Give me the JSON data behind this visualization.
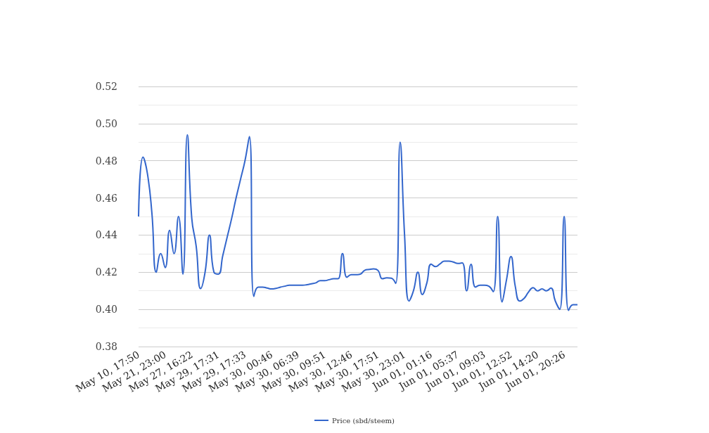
{
  "chart_data": {
    "type": "line",
    "categories": [
      "May 10, 17:50",
      null,
      null,
      null,
      null,
      null,
      "May 21, 23:00",
      null,
      null,
      null,
      null,
      null,
      "May 27, 16:22",
      null,
      null,
      null,
      null,
      null,
      "May 29, 17:31",
      null,
      null,
      null,
      null,
      null,
      "May 29, 17:33",
      null,
      null,
      null,
      null,
      null,
      "May 30, 00:46",
      null,
      null,
      null,
      null,
      null,
      "May 30, 06:39",
      null,
      null,
      null,
      null,
      null,
      "May 30, 09:51",
      null,
      null,
      null,
      null,
      null,
      "May 30, 12:46",
      null,
      null,
      null,
      null,
      null,
      "May 30, 17:51",
      null,
      null,
      null,
      null,
      null,
      "May 30, 23:01",
      null,
      null,
      null,
      null,
      null,
      "Jun 01, 01:16",
      null,
      null,
      null,
      null,
      null,
      "Jun 01, 05:37",
      null,
      null,
      null,
      null,
      null,
      "Jun 01, 09:03",
      null,
      null,
      null,
      null,
      null,
      "Jun 01, 12:52",
      null,
      null,
      null,
      null,
      null,
      "Jun 01, 14:20",
      null,
      null,
      null,
      null,
      null,
      "Jun 01, 20:26",
      null,
      null,
      null
    ],
    "series": [
      {
        "name": "Price (sbd/steem)",
        "color": "#3366cc",
        "values": [
          0.45,
          0.482,
          0.473,
          0.452,
          0.42,
          0.43,
          0.4225,
          0.4425,
          0.43,
          0.45,
          0.419,
          0.494,
          0.449,
          0.434,
          0.4112,
          0.42,
          0.44,
          0.42,
          0.419,
          0.429,
          0.439,
          0.449,
          0.46,
          0.47,
          0.48,
          0.493,
          0.407,
          0.412,
          0.412,
          0.4115,
          0.411,
          0.4113,
          0.412,
          0.4125,
          0.413,
          0.413,
          0.413,
          0.413,
          0.4133,
          0.4138,
          0.4143,
          0.4155,
          0.4155,
          0.416,
          0.4165,
          0.4165,
          0.43,
          0.4173,
          0.4187,
          0.4187,
          0.419,
          0.421,
          0.4215,
          0.4218,
          0.421,
          0.4165,
          0.417,
          0.4168,
          0.414,
          0.49,
          0.44,
          0.4045,
          0.41,
          0.42,
          0.408,
          0.414,
          0.4244,
          0.423,
          0.4245,
          0.426,
          0.426,
          0.4255,
          0.4247,
          0.425,
          0.41,
          0.4243,
          0.412,
          0.413,
          0.413,
          0.4125,
          0.4095,
          0.45,
          0.404,
          0.416,
          0.4284,
          0.412,
          0.4045,
          0.406,
          0.4095,
          0.4117,
          0.41,
          0.411,
          0.41,
          0.4115,
          0.4045,
          0.4,
          0.45,
          0.3995,
          0.4025,
          0.4025
        ]
      }
    ],
    "ylim": [
      0.38,
      0.52
    ],
    "yticks": [
      0.38,
      {
        "value": 0.4,
        "label": "0.40"
      },
      0.42,
      0.44,
      0.46,
      0.48,
      {
        "value": 0.5,
        "label": "0.50"
      },
      0.52
    ],
    "grid": true,
    "legend": "bottom",
    "marker": "none",
    "line_style": "solid"
  }
}
